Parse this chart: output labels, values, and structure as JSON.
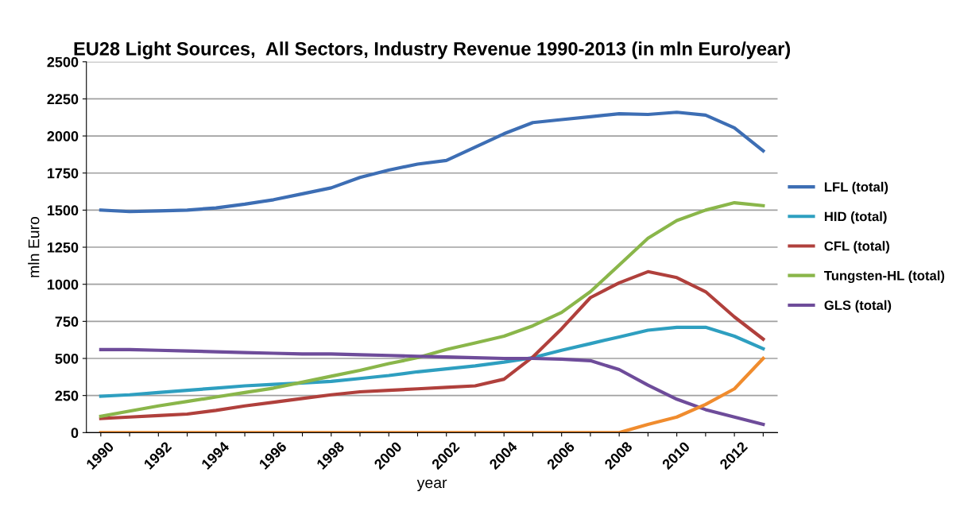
{
  "chart_data": {
    "type": "line",
    "title": "EU28 Light Sources,  All Sectors, Industry Revenue 1990-2013 (in mln Euro/year)",
    "xlabel": "year",
    "ylabel": "mln Euro",
    "categories": [
      "1990",
      null,
      "1992",
      null,
      "1994",
      null,
      "1996",
      null,
      "1998",
      null,
      "2000",
      null,
      "2002",
      null,
      "2004",
      null,
      "2006",
      null,
      "2008",
      null,
      "2010",
      null,
      "2012",
      null
    ],
    "series": [
      {
        "name": "LFL (total)",
        "color": "#3d6eb4",
        "values": [
          1500,
          1490,
          1495,
          1500,
          1515,
          1540,
          1570,
          1610,
          1650,
          1720,
          1770,
          1810,
          1835,
          1925,
          2015,
          2090,
          2110,
          2130,
          2150,
          2145,
          2160,
          2140,
          2055,
          1900
        ]
      },
      {
        "name": "HID (total)",
        "color": "#2e9fc0",
        "values": [
          245,
          255,
          270,
          285,
          300,
          315,
          325,
          335,
          345,
          365,
          385,
          410,
          430,
          450,
          475,
          505,
          555,
          600,
          645,
          690,
          710,
          710,
          650,
          565
        ]
      },
      {
        "name": "CFL (total)",
        "color": "#b0403c",
        "values": [
          95,
          105,
          115,
          125,
          150,
          180,
          205,
          230,
          255,
          275,
          285,
          295,
          305,
          315,
          360,
          510,
          700,
          910,
          1010,
          1085,
          1045,
          950,
          780,
          630
        ]
      },
      {
        "name": "Tungsten-HL (total)",
        "color": "#8ab64a",
        "values": [
          110,
          145,
          180,
          210,
          240,
          270,
          300,
          340,
          380,
          420,
          465,
          505,
          560,
          605,
          650,
          720,
          810,
          950,
          1130,
          1310,
          1430,
          1500,
          1550,
          1530
        ]
      },
      {
        "name": "GLS (total)",
        "color": "#6e4c9a",
        "values": [
          560,
          560,
          555,
          550,
          545,
          540,
          535,
          530,
          530,
          525,
          520,
          515,
          510,
          505,
          500,
          500,
          495,
          485,
          425,
          320,
          225,
          155,
          105,
          55
        ]
      },
      {
        "color": "#f08c2e",
        "values": [
          0,
          0,
          0,
          0,
          0,
          0,
          0,
          0,
          0,
          0,
          0,
          0,
          0,
          0,
          0,
          0,
          0,
          0,
          0,
          55,
          105,
          190,
          295,
          500
        ]
      }
    ],
    "ylim": [
      0,
      2500
    ],
    "yticks": [
      0,
      250,
      500,
      750,
      1000,
      1250,
      1500,
      1750,
      2000,
      2250,
      2500
    ],
    "grid": "y",
    "legend": "right",
    "marker": "none",
    "line_style": "solid"
  }
}
